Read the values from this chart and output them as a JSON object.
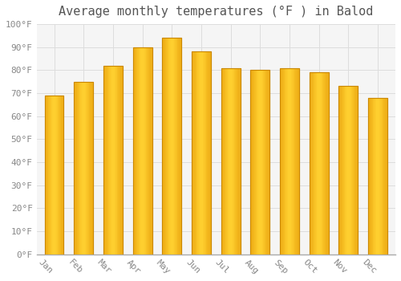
{
  "title": "Average monthly temperatures (°F ) in Balod",
  "months": [
    "Jan",
    "Feb",
    "Mar",
    "Apr",
    "May",
    "Jun",
    "Jul",
    "Aug",
    "Sep",
    "Oct",
    "Nov",
    "Dec"
  ],
  "values": [
    69,
    75,
    82,
    90,
    94,
    88,
    81,
    80,
    81,
    79,
    73,
    68
  ],
  "bar_color_center": "#FFB300",
  "bar_color_edge": "#F5A623",
  "bar_face_color": "#FFB300",
  "bar_edge_color": "#CC8800",
  "ylim": [
    0,
    100
  ],
  "yticks": [
    0,
    10,
    20,
    30,
    40,
    50,
    60,
    70,
    80,
    90,
    100
  ],
  "ytick_labels": [
    "0°F",
    "10°F",
    "20°F",
    "30°F",
    "40°F",
    "50°F",
    "60°F",
    "70°F",
    "80°F",
    "90°F",
    "100°F"
  ],
  "background_color": "#FFFFFF",
  "plot_bg_color": "#F5F5F5",
  "grid_color": "#DDDDDD",
  "title_fontsize": 11,
  "tick_fontsize": 8,
  "bar_width": 0.65,
  "xlabel_rotation": -45,
  "xlabel_ha": "right"
}
